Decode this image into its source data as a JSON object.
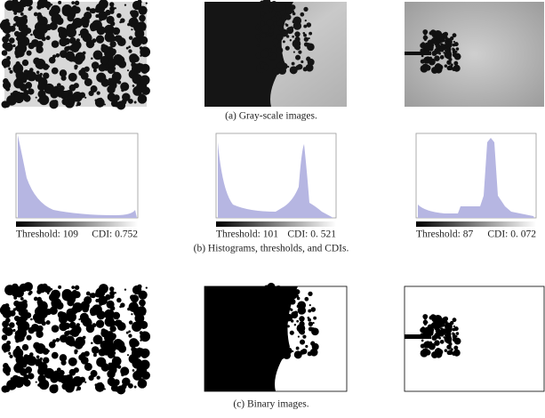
{
  "captions": [
    "(a) Gray-scale images.",
    "(b) Histograms, thresholds, and CDIs.",
    "(c) Binary images."
  ],
  "panels": [
    {
      "threshold": "Threshold: 109",
      "cdi": "CDI: 0.752"
    },
    {
      "threshold": "Threshold: 101",
      "cdi": "CDI: 0. 521"
    },
    {
      "threshold": "Threshold: 87",
      "cdi": "CDI: 0. 072"
    }
  ]
}
